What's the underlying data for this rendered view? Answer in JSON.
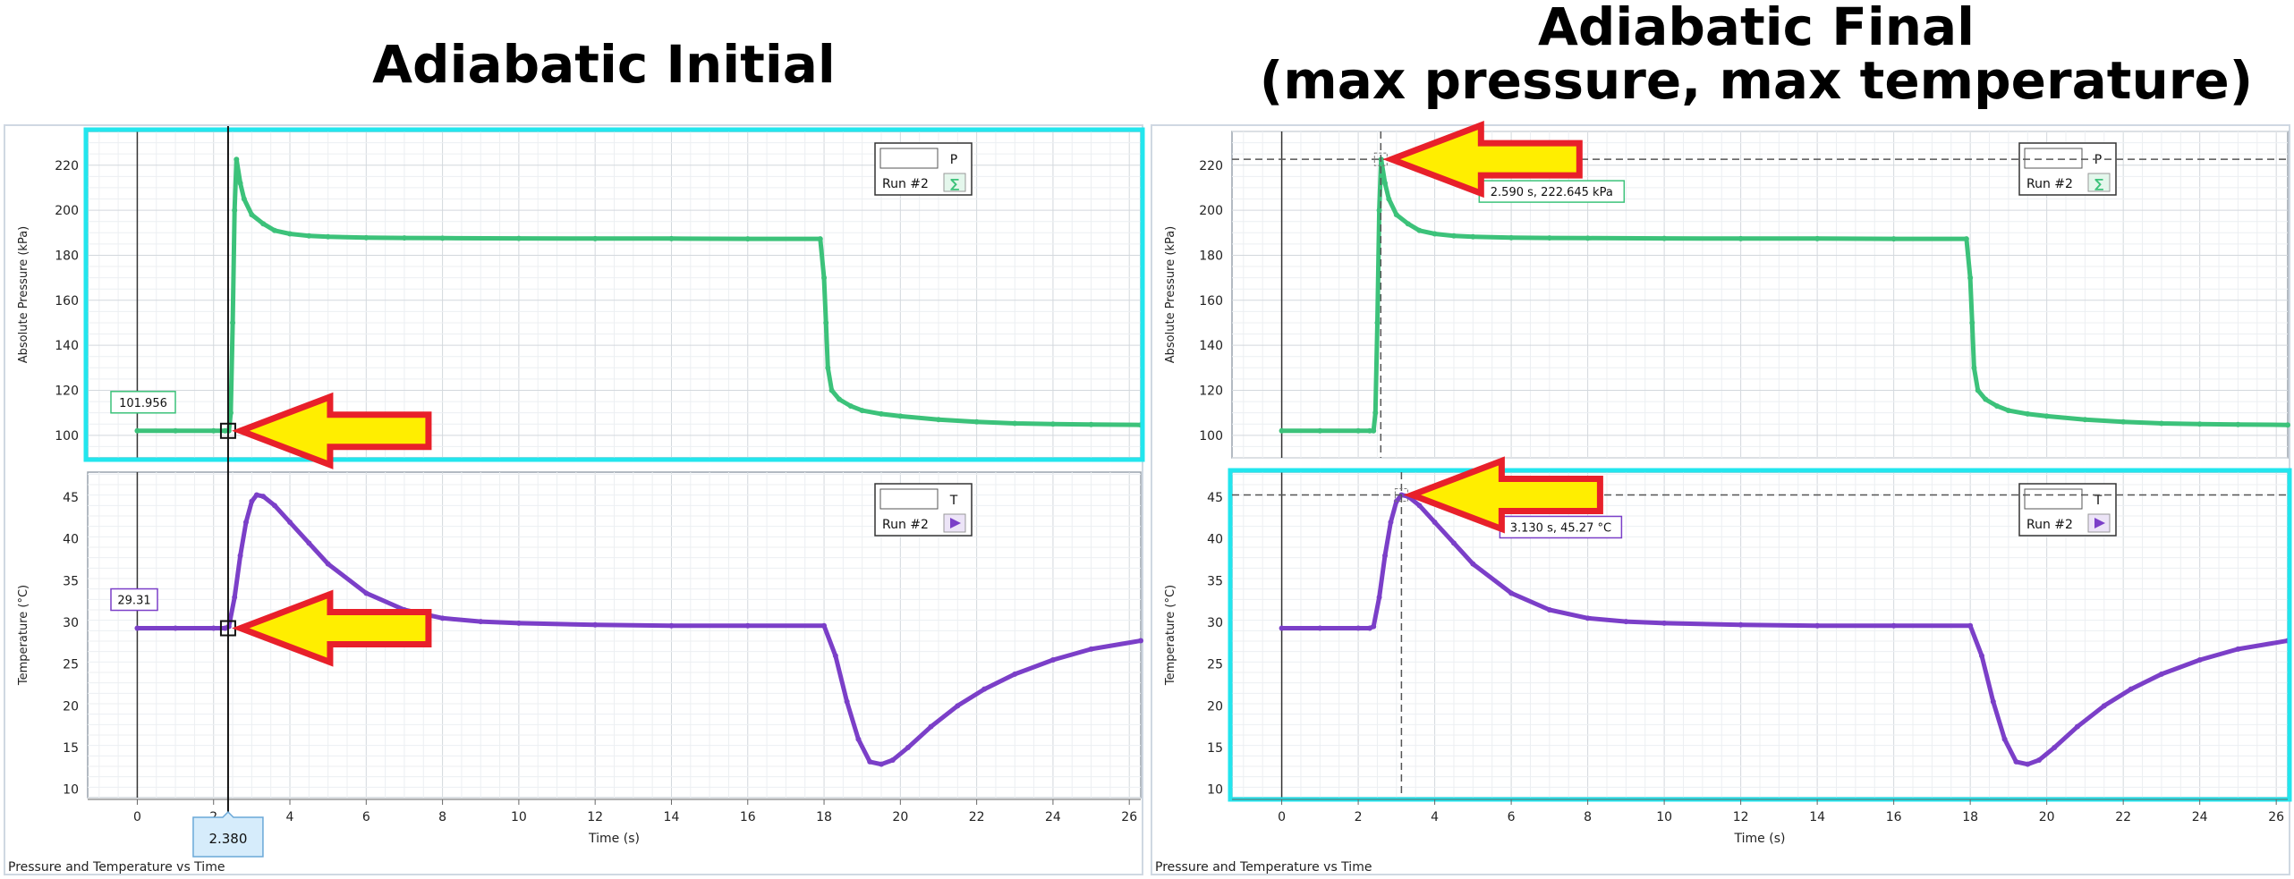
{
  "left_title": "Adiabatic Initial",
  "right_title_line1": "Adiabatic Final",
  "right_title_line2": "(max pressure, max temperature)",
  "colors": {
    "pressure": "#3cc27a",
    "temperature": "#7b3fc8",
    "highlight": "#22e6ee",
    "arrow_fill": "#ffee00",
    "arrow_stroke": "#e8202a"
  },
  "chart_data": [
    {
      "id": "left",
      "type": "line",
      "caption": "Pressure and Temperature vs Time",
      "xlabel": "Time (s)",
      "xlim": [
        -1.3,
        26.3
      ],
      "x_ticks": [
        0,
        2,
        4,
        6,
        8,
        10,
        12,
        14,
        16,
        18,
        20,
        22,
        24,
        26
      ],
      "cursor_x": 2.38,
      "cursor_label": "2.380",
      "panels": [
        {
          "name": "pressure",
          "ylabel": "Absolute Pressure (kPa)",
          "ylim": [
            90,
            235
          ],
          "y_ticks": [
            100,
            120,
            140,
            160,
            180,
            200,
            220
          ],
          "legend_symbol": "P",
          "legend_run": "Run #2",
          "legend_icon": "sigma-icon",
          "highlighted": true,
          "readout": "101.956",
          "series": {
            "name": "Run #2",
            "x": [
              0,
              1,
              2,
              2.3,
              2.4,
              2.45,
              2.5,
              2.55,
              2.6,
              2.7,
              2.8,
              3.0,
              3.3,
              3.6,
              4.0,
              4.5,
              5.0,
              6,
              7,
              8,
              10,
              12,
              14,
              16,
              17.9,
              18.0,
              18.05,
              18.1,
              18.2,
              18.4,
              18.7,
              19.0,
              19.5,
              20,
              21,
              22,
              23,
              24,
              25,
              26.3
            ],
            "y": [
              102,
              102,
              102,
              102,
              102,
              110,
              150,
              200,
              222.6,
              212,
              205,
              198,
              194,
              191,
              189.5,
              188.6,
              188.2,
              187.8,
              187.7,
              187.6,
              187.5,
              187.4,
              187.4,
              187.3,
              187.3,
              170,
              150,
              130,
              120,
              116,
              113,
              111,
              109.5,
              108.5,
              107,
              106,
              105.3,
              105,
              104.8,
              104.6
            ]
          }
        },
        {
          "name": "temperature",
          "ylabel": "Temperature (°C)",
          "ylim": [
            9,
            48
          ],
          "y_ticks": [
            10,
            15,
            20,
            25,
            30,
            35,
            40,
            45
          ],
          "legend_symbol": "T",
          "legend_run": "Run #2",
          "legend_icon": "play-icon",
          "highlighted": false,
          "readout": "29.31",
          "series": {
            "name": "Run #2",
            "x": [
              0,
              1,
              2,
              2.3,
              2.4,
              2.55,
              2.7,
              2.85,
              3.0,
              3.13,
              3.3,
              3.6,
              4.0,
              4.5,
              5,
              6,
              7,
              8,
              9,
              10,
              12,
              14,
              16,
              18,
              18.3,
              18.6,
              18.9,
              19.2,
              19.5,
              19.8,
              20.2,
              20.8,
              21.5,
              22.2,
              23,
              24,
              25,
              26.3
            ],
            "y": [
              29.3,
              29.3,
              29.3,
              29.3,
              29.5,
              33,
              38,
              42,
              44.5,
              45.27,
              45.1,
              44,
              42,
              39.5,
              37,
              33.5,
              31.5,
              30.5,
              30.1,
              29.9,
              29.7,
              29.6,
              29.6,
              29.6,
              26,
              20.5,
              16,
              13.3,
              13,
              13.5,
              15,
              17.5,
              20,
              22,
              23.8,
              25.5,
              26.8,
              27.8
            ]
          }
        }
      ]
    },
    {
      "id": "right",
      "type": "line",
      "caption": "Pressure and Temperature vs Time",
      "xlabel": "Time (s)",
      "xlim": [
        -1.3,
        26.3
      ],
      "x_ticks": [
        0,
        2,
        4,
        6,
        8,
        10,
        12,
        14,
        16,
        18,
        20,
        22,
        24,
        26
      ],
      "panels": [
        {
          "name": "pressure",
          "ylabel": "Absolute Pressure (kPa)",
          "ylim": [
            90,
            235
          ],
          "y_ticks": [
            100,
            120,
            140,
            160,
            180,
            200,
            220
          ],
          "legend_symbol": "P",
          "legend_run": "Run #2",
          "legend_icon": "sigma-icon",
          "highlighted": false,
          "marker_x": 2.59,
          "marker_y": 222.645,
          "readout": "2.590 s, 222.645 kPa",
          "series": {
            "name": "Run #2",
            "x": [
              0,
              1,
              2,
              2.3,
              2.4,
              2.45,
              2.5,
              2.55,
              2.6,
              2.7,
              2.8,
              3.0,
              3.3,
              3.6,
              4.0,
              4.5,
              5.0,
              6,
              7,
              8,
              10,
              12,
              14,
              16,
              17.9,
              18.0,
              18.05,
              18.1,
              18.2,
              18.4,
              18.7,
              19.0,
              19.5,
              20,
              21,
              22,
              23,
              24,
              25,
              26.3
            ],
            "y": [
              102,
              102,
              102,
              102,
              102,
              110,
              150,
              200,
              222.6,
              212,
              205,
              198,
              194,
              191,
              189.5,
              188.6,
              188.2,
              187.8,
              187.7,
              187.6,
              187.5,
              187.4,
              187.4,
              187.3,
              187.3,
              170,
              150,
              130,
              120,
              116,
              113,
              111,
              109.5,
              108.5,
              107,
              106,
              105.3,
              105,
              104.8,
              104.6
            ]
          }
        },
        {
          "name": "temperature",
          "ylabel": "Temperature (°C)",
          "ylim": [
            9,
            48
          ],
          "y_ticks": [
            10,
            15,
            20,
            25,
            30,
            35,
            40,
            45
          ],
          "legend_symbol": "T",
          "legend_run": "Run #2",
          "legend_icon": "play-icon",
          "highlighted": true,
          "marker_x": 3.13,
          "marker_y": 45.27,
          "readout": "3.130 s, 45.27 °C",
          "series": {
            "name": "Run #2",
            "x": [
              0,
              1,
              2,
              2.3,
              2.4,
              2.55,
              2.7,
              2.85,
              3.0,
              3.13,
              3.3,
              3.6,
              4.0,
              4.5,
              5,
              6,
              7,
              8,
              9,
              10,
              12,
              14,
              16,
              18,
              18.3,
              18.6,
              18.9,
              19.2,
              19.5,
              19.8,
              20.2,
              20.8,
              21.5,
              22.2,
              23,
              24,
              25,
              26.3
            ],
            "y": [
              29.3,
              29.3,
              29.3,
              29.3,
              29.5,
              33,
              38,
              42,
              44.5,
              45.27,
              45.1,
              44,
              42,
              39.5,
              37,
              33.5,
              31.5,
              30.5,
              30.1,
              29.9,
              29.7,
              29.6,
              29.6,
              29.6,
              26,
              20.5,
              16,
              13.3,
              13,
              13.5,
              15,
              17.5,
              20,
              22,
              23.8,
              25.5,
              26.8,
              27.8
            ]
          }
        }
      ]
    }
  ]
}
